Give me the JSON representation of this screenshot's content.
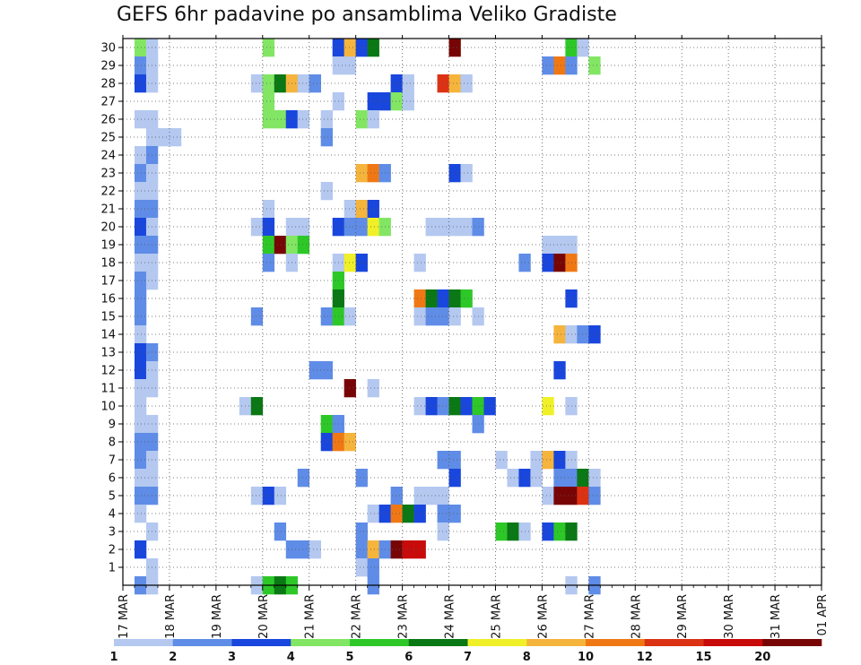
{
  "chart_data": {
    "type": "heatmap",
    "title": "GEFS 6hr padavine po ansamblima Veliko Gradiste",
    "xlabel": "",
    "ylabel": "",
    "x_ticks": [
      "17 MAR",
      "18 MAR",
      "19 MAR",
      "20 MAR",
      "21 MAR",
      "22 MAR",
      "23 MAR",
      "24 MAR",
      "25 MAR",
      "26 MAR",
      "27 MAR",
      "28 MAR",
      "29 MAR",
      "30 MAR",
      "31 MAR",
      "01 APR"
    ],
    "y_ticks": [
      1,
      2,
      3,
      4,
      5,
      6,
      7,
      8,
      9,
      10,
      11,
      12,
      13,
      14,
      15,
      16,
      17,
      18,
      19,
      20,
      21,
      22,
      23,
      24,
      25,
      26,
      27,
      28,
      29,
      30
    ],
    "xlim_steps": [
      0,
      60
    ],
    "ylim": [
      0,
      30
    ],
    "grid": true,
    "legend_placement": "bottom",
    "color_levels": [
      1,
      2,
      3,
      4,
      5,
      6,
      7,
      8,
      10,
      12,
      15,
      20
    ],
    "palette": [
      "#b4c8f0",
      "#5f8ce6",
      "#1946dc",
      "#82e664",
      "#2dc828",
      "#0a7814",
      "#f0f028",
      "#f5b43c",
      "#f07814",
      "#dc3214",
      "#c80a0a",
      "#780505"
    ],
    "cells_note": "each cell: [member, step(6h from 17 MAR 00z), level index 1-12]",
    "cells": [
      [
        30,
        1,
        4
      ],
      [
        30,
        2,
        1
      ],
      [
        30,
        12,
        4
      ],
      [
        30,
        18,
        3
      ],
      [
        30,
        19,
        8
      ],
      [
        30,
        20,
        3
      ],
      [
        30,
        21,
        6
      ],
      [
        30,
        28,
        12
      ],
      [
        30,
        38,
        5
      ],
      [
        30,
        39,
        1
      ],
      [
        29,
        1,
        2
      ],
      [
        29,
        2,
        1
      ],
      [
        29,
        18,
        1
      ],
      [
        29,
        19,
        1
      ],
      [
        29,
        36,
        2
      ],
      [
        29,
        37,
        9
      ],
      [
        29,
        38,
        2
      ],
      [
        29,
        40,
        4
      ],
      [
        28,
        1,
        3
      ],
      [
        28,
        2,
        1
      ],
      [
        28,
        11,
        1
      ],
      [
        28,
        12,
        4
      ],
      [
        28,
        13,
        6
      ],
      [
        28,
        14,
        8
      ],
      [
        28,
        15,
        1
      ],
      [
        28,
        16,
        2
      ],
      [
        28,
        23,
        3
      ],
      [
        28,
        24,
        1
      ],
      [
        28,
        27,
        10
      ],
      [
        28,
        28,
        8
      ],
      [
        28,
        29,
        1
      ],
      [
        27,
        12,
        4
      ],
      [
        27,
        18,
        1
      ],
      [
        27,
        21,
        3
      ],
      [
        27,
        22,
        3
      ],
      [
        27,
        23,
        4
      ],
      [
        27,
        24,
        1
      ],
      [
        26,
        1,
        1
      ],
      [
        26,
        2,
        1
      ],
      [
        26,
        12,
        4
      ],
      [
        26,
        13,
        4
      ],
      [
        26,
        14,
        3
      ],
      [
        26,
        15,
        1
      ],
      [
        26,
        17,
        1
      ],
      [
        26,
        20,
        4
      ],
      [
        26,
        21,
        1
      ],
      [
        25,
        2,
        1
      ],
      [
        25,
        3,
        1
      ],
      [
        25,
        4,
        1
      ],
      [
        25,
        17,
        2
      ],
      [
        24,
        1,
        1
      ],
      [
        24,
        2,
        2
      ],
      [
        23,
        1,
        2
      ],
      [
        23,
        2,
        1
      ],
      [
        23,
        20,
        8
      ],
      [
        23,
        21,
        9
      ],
      [
        23,
        22,
        2
      ],
      [
        23,
        28,
        3
      ],
      [
        23,
        29,
        1
      ],
      [
        22,
        1,
        1
      ],
      [
        22,
        2,
        1
      ],
      [
        22,
        17,
        1
      ],
      [
        21,
        1,
        2
      ],
      [
        21,
        2,
        2
      ],
      [
        21,
        12,
        1
      ],
      [
        21,
        19,
        1
      ],
      [
        21,
        20,
        8
      ],
      [
        21,
        21,
        3
      ],
      [
        20,
        1,
        3
      ],
      [
        20,
        2,
        1
      ],
      [
        20,
        11,
        1
      ],
      [
        20,
        12,
        3
      ],
      [
        20,
        14,
        1
      ],
      [
        20,
        15,
        1
      ],
      [
        20,
        18,
        3
      ],
      [
        20,
        19,
        2
      ],
      [
        20,
        20,
        2
      ],
      [
        20,
        21,
        7
      ],
      [
        20,
        22,
        4
      ],
      [
        20,
        26,
        1
      ],
      [
        20,
        27,
        1
      ],
      [
        20,
        28,
        1
      ],
      [
        20,
        29,
        1
      ],
      [
        20,
        30,
        2
      ],
      [
        19,
        1,
        2
      ],
      [
        19,
        2,
        2
      ],
      [
        19,
        12,
        5
      ],
      [
        19,
        13,
        12
      ],
      [
        19,
        14,
        4
      ],
      [
        19,
        15,
        5
      ],
      [
        19,
        36,
        1
      ],
      [
        19,
        37,
        1
      ],
      [
        19,
        38,
        1
      ],
      [
        18,
        1,
        1
      ],
      [
        18,
        2,
        1
      ],
      [
        18,
        12,
        2
      ],
      [
        18,
        14,
        1
      ],
      [
        18,
        18,
        1
      ],
      [
        18,
        19,
        7
      ],
      [
        18,
        20,
        3
      ],
      [
        18,
        25,
        1
      ],
      [
        18,
        34,
        2
      ],
      [
        18,
        36,
        3
      ],
      [
        18,
        37,
        12
      ],
      [
        18,
        38,
        9
      ],
      [
        17,
        1,
        2
      ],
      [
        17,
        2,
        1
      ],
      [
        17,
        18,
        5
      ],
      [
        16,
        1,
        2
      ],
      [
        16,
        18,
        6
      ],
      [
        16,
        25,
        9
      ],
      [
        16,
        26,
        6
      ],
      [
        16,
        27,
        3
      ],
      [
        16,
        28,
        6
      ],
      [
        16,
        29,
        5
      ],
      [
        16,
        38,
        3
      ],
      [
        15,
        1,
        2
      ],
      [
        15,
        11,
        2
      ],
      [
        15,
        17,
        2
      ],
      [
        15,
        18,
        5
      ],
      [
        15,
        19,
        1
      ],
      [
        15,
        25,
        1
      ],
      [
        15,
        26,
        2
      ],
      [
        15,
        27,
        2
      ],
      [
        15,
        28,
        1
      ],
      [
        15,
        30,
        1
      ],
      [
        14,
        1,
        1
      ],
      [
        14,
        37,
        8
      ],
      [
        14,
        38,
        1
      ],
      [
        14,
        39,
        2
      ],
      [
        14,
        40,
        3
      ],
      [
        13,
        1,
        3
      ],
      [
        13,
        2,
        2
      ],
      [
        12,
        1,
        3
      ],
      [
        12,
        2,
        1
      ],
      [
        12,
        16,
        2
      ],
      [
        12,
        17,
        2
      ],
      [
        12,
        37,
        3
      ],
      [
        11,
        1,
        1
      ],
      [
        11,
        2,
        1
      ],
      [
        11,
        19,
        12
      ],
      [
        11,
        21,
        1
      ],
      [
        10,
        1,
        1
      ],
      [
        10,
        10,
        1
      ],
      [
        10,
        11,
        6
      ],
      [
        10,
        25,
        1
      ],
      [
        10,
        26,
        3
      ],
      [
        10,
        27,
        2
      ],
      [
        10,
        28,
        6
      ],
      [
        10,
        29,
        3
      ],
      [
        10,
        30,
        5
      ],
      [
        10,
        31,
        3
      ],
      [
        10,
        36,
        7
      ],
      [
        10,
        38,
        1
      ],
      [
        9,
        1,
        1
      ],
      [
        9,
        2,
        1
      ],
      [
        9,
        17,
        5
      ],
      [
        9,
        18,
        2
      ],
      [
        9,
        30,
        2
      ],
      [
        8,
        1,
        2
      ],
      [
        8,
        2,
        2
      ],
      [
        8,
        17,
        3
      ],
      [
        8,
        18,
        9
      ],
      [
        8,
        19,
        8
      ],
      [
        7,
        1,
        2
      ],
      [
        7,
        2,
        1
      ],
      [
        7,
        27,
        2
      ],
      [
        7,
        28,
        2
      ],
      [
        7,
        32,
        1
      ],
      [
        7,
        35,
        1
      ],
      [
        7,
        36,
        8
      ],
      [
        7,
        37,
        3
      ],
      [
        7,
        38,
        1
      ],
      [
        6,
        1,
        1
      ],
      [
        6,
        2,
        1
      ],
      [
        6,
        15,
        2
      ],
      [
        6,
        20,
        2
      ],
      [
        6,
        28,
        3
      ],
      [
        6,
        33,
        1
      ],
      [
        6,
        34,
        3
      ],
      [
        6,
        35,
        1
      ],
      [
        6,
        37,
        2
      ],
      [
        6,
        38,
        2
      ],
      [
        6,
        39,
        6
      ],
      [
        6,
        40,
        1
      ],
      [
        5,
        1,
        2
      ],
      [
        5,
        2,
        2
      ],
      [
        5,
        11,
        1
      ],
      [
        5,
        12,
        3
      ],
      [
        5,
        13,
        1
      ],
      [
        5,
        23,
        2
      ],
      [
        5,
        25,
        1
      ],
      [
        5,
        26,
        1
      ],
      [
        5,
        27,
        1
      ],
      [
        5,
        36,
        1
      ],
      [
        5,
        37,
        12
      ],
      [
        5,
        38,
        12
      ],
      [
        5,
        39,
        10
      ],
      [
        5,
        40,
        2
      ],
      [
        4,
        1,
        1
      ],
      [
        4,
        21,
        1
      ],
      [
        4,
        22,
        3
      ],
      [
        4,
        23,
        9
      ],
      [
        4,
        24,
        6
      ],
      [
        4,
        25,
        3
      ],
      [
        4,
        27,
        2
      ],
      [
        4,
        28,
        2
      ],
      [
        3,
        2,
        1
      ],
      [
        3,
        13,
        2
      ],
      [
        3,
        20,
        2
      ],
      [
        3,
        27,
        1
      ],
      [
        3,
        32,
        5
      ],
      [
        3,
        33,
        6
      ],
      [
        3,
        34,
        1
      ],
      [
        3,
        36,
        3
      ],
      [
        3,
        37,
        5
      ],
      [
        3,
        38,
        6
      ],
      [
        2,
        1,
        3
      ],
      [
        2,
        14,
        2
      ],
      [
        2,
        15,
        2
      ],
      [
        2,
        16,
        1
      ],
      [
        2,
        20,
        2
      ],
      [
        2,
        21,
        8
      ],
      [
        2,
        22,
        2
      ],
      [
        2,
        23,
        12
      ],
      [
        2,
        24,
        11
      ],
      [
        2,
        25,
        11
      ],
      [
        1,
        2,
        1
      ],
      [
        1,
        20,
        1
      ],
      [
        1,
        21,
        2
      ],
      [
        0,
        1,
        2
      ],
      [
        0,
        2,
        1
      ],
      [
        0,
        11,
        1
      ],
      [
        0,
        12,
        5
      ],
      [
        0,
        13,
        6
      ],
      [
        0,
        14,
        5
      ],
      [
        0,
        21,
        2
      ],
      [
        0,
        38,
        1
      ],
      [
        0,
        40,
        2
      ]
    ]
  }
}
